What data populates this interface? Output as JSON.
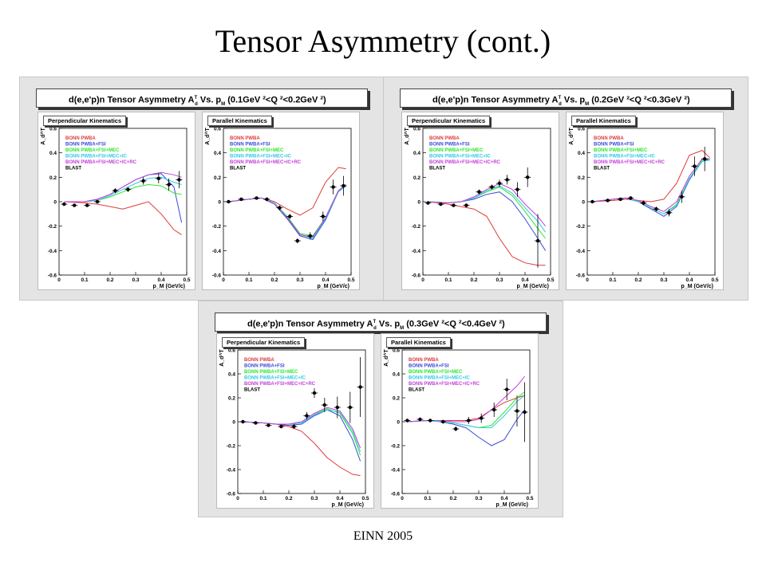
{
  "slide": {
    "title": "Tensor Asymmetry (cont.)",
    "footer": "EINN 2005"
  },
  "colors": {
    "pwba": "#e03a3a",
    "fsi": "#3a4ad8",
    "mec": "#2ee52e",
    "ic": "#2ecbe6",
    "rc": "#c23fd6",
    "blast": "#000000",
    "panel_bg": "#e4e4e4"
  },
  "legend": [
    "BONN PWBA",
    "BONN PWBA+FSI",
    "BONN PWBA+FSI+MEC",
    "BONN PWBA+FSI+MEC+IC",
    "BONN PWBA+FSI+MEC+IC+RC",
    "BLAST"
  ],
  "common": {
    "ylabel": "A_d^T",
    "xlabel": "p_M (GeV/c)",
    "ylim": [
      -0.6,
      0.6
    ],
    "xlim": [
      0,
      0.5
    ],
    "yticks": [
      "0.6",
      "0.4",
      "0.2",
      "0",
      "-0.2",
      "-0.4",
      "-0.6"
    ],
    "xticks": [
      "0",
      "0.1",
      "0.2",
      "0.3",
      "0.4",
      "0.5"
    ],
    "perp_label": "Perpendicular Kinematics",
    "par_label": "Parallel Kinematics"
  },
  "panels": [
    {
      "title_main": "d(e,e'p)n Tensor Asymmetry A",
      "title_sup": "T",
      "title_sub": "d",
      "title_vs": " Vs. p",
      "title_vs_sub": "M",
      "title_range": " (0.1GeV ²<Q ²<0.2GeV ²)"
    },
    {
      "title_main": "d(e,e'p)n Tensor Asymmetry A",
      "title_sup": "T",
      "title_sub": "d",
      "title_vs": " Vs. p",
      "title_vs_sub": "M",
      "title_range": " (0.2GeV ²<Q ²<0.3GeV ²)"
    },
    {
      "title_main": "d(e,e'p)n Tensor Asymmetry A",
      "title_sup": "T",
      "title_sub": "d",
      "title_vs": " Vs. p",
      "title_vs_sub": "M",
      "title_range": " (0.3GeV ²<Q ²<0.4GeV ²)"
    }
  ],
  "chart_data": [
    {
      "type": "line",
      "id": "p1-perp",
      "series": [
        {
          "name": "BONN PWBA",
          "x": [
            0.02,
            0.1,
            0.15,
            0.2,
            0.25,
            0.3,
            0.35,
            0.4,
            0.45,
            0.48
          ],
          "y": [
            0,
            -0.01,
            -0.02,
            -0.04,
            -0.06,
            -0.03,
            0.0,
            -0.1,
            -0.23,
            -0.27
          ]
        },
        {
          "name": "BONN PWBA+FSI",
          "x": [
            0.02,
            0.1,
            0.15,
            0.2,
            0.25,
            0.3,
            0.35,
            0.4,
            0.45,
            0.48
          ],
          "y": [
            0,
            0,
            0.02,
            0.06,
            0.12,
            0.18,
            0.22,
            0.23,
            0.12,
            -0.17
          ]
        },
        {
          "name": "BONN PWBA+FSI+MEC",
          "x": [
            0.02,
            0.1,
            0.15,
            0.2,
            0.25,
            0.3,
            0.35,
            0.4,
            0.45,
            0.48
          ],
          "y": [
            0,
            0,
            0.01,
            0.04,
            0.08,
            0.12,
            0.14,
            0.13,
            0.07,
            0.06
          ]
        },
        {
          "name": "BONN PWBA+FSI+MEC+IC",
          "x": [
            0.02,
            0.1,
            0.15,
            0.2,
            0.25,
            0.3,
            0.35,
            0.4,
            0.45,
            0.48
          ],
          "y": [
            0,
            0,
            0.01,
            0.05,
            0.1,
            0.15,
            0.19,
            0.2,
            0.16,
            0.14
          ]
        },
        {
          "name": "BONN PWBA+FSI+MEC+IC+RC",
          "x": [
            0.02,
            0.1,
            0.15,
            0.2,
            0.25,
            0.3,
            0.35,
            0.4,
            0.45,
            0.48
          ],
          "y": [
            0,
            0,
            0.02,
            0.06,
            0.12,
            0.18,
            0.22,
            0.24,
            0.22,
            0.2
          ]
        }
      ],
      "blast": {
        "x": [
          0.02,
          0.06,
          0.11,
          0.15,
          0.22,
          0.27,
          0.33,
          0.39,
          0.43,
          0.47
        ],
        "y": [
          -0.02,
          -0.03,
          -0.03,
          0.0,
          0.09,
          0.1,
          0.17,
          0.19,
          0.14,
          0.18
        ],
        "yerr": [
          0.01,
          0.01,
          0.01,
          0.015,
          0.02,
          0.02,
          0.03,
          0.04,
          0.05,
          0.07
        ]
      }
    },
    {
      "type": "line",
      "id": "p1-par",
      "series": [
        {
          "name": "BONN PWBA",
          "x": [
            0.02,
            0.1,
            0.15,
            0.2,
            0.25,
            0.3,
            0.35,
            0.4,
            0.45,
            0.48
          ],
          "y": [
            0,
            0.02,
            0.03,
            0.0,
            -0.06,
            -0.11,
            -0.05,
            0.16,
            0.28,
            0.27
          ]
        },
        {
          "name": "BONN PWBA+FSI",
          "x": [
            0.02,
            0.1,
            0.15,
            0.2,
            0.25,
            0.3,
            0.35,
            0.4,
            0.45,
            0.48
          ],
          "y": [
            0,
            0.02,
            0.03,
            -0.02,
            -0.14,
            -0.28,
            -0.31,
            -0.15,
            0.08,
            0.13
          ]
        },
        {
          "name": "BONN PWBA+FSI+MEC",
          "x": [
            0.02,
            0.1,
            0.15,
            0.2,
            0.25,
            0.3,
            0.35,
            0.4,
            0.45,
            0.48
          ],
          "y": [
            0,
            0.02,
            0.03,
            -0.01,
            -0.12,
            -0.26,
            -0.28,
            -0.13,
            0.09,
            0.14
          ]
        },
        {
          "name": "BONN PWBA+FSI+MEC+IC",
          "x": [
            0.02,
            0.1,
            0.15,
            0.2,
            0.25,
            0.3,
            0.35,
            0.4,
            0.45,
            0.48
          ],
          "y": [
            0,
            0.02,
            0.03,
            -0.01,
            -0.13,
            -0.27,
            -0.3,
            -0.14,
            0.08,
            0.13
          ]
        },
        {
          "name": "BONN PWBA+FSI+MEC+IC+RC",
          "x": [
            0.02,
            0.1,
            0.15,
            0.2,
            0.25,
            0.3,
            0.35,
            0.4,
            0.45,
            0.48
          ],
          "y": [
            0,
            0.02,
            0.03,
            -0.02,
            -0.13,
            -0.27,
            -0.29,
            -0.13,
            0.09,
            0.14
          ]
        }
      ],
      "blast": {
        "x": [
          0.02,
          0.07,
          0.13,
          0.17,
          0.22,
          0.26,
          0.29,
          0.34,
          0.39,
          0.43,
          0.47
        ],
        "y": [
          0,
          0.02,
          0.03,
          0.02,
          -0.05,
          -0.12,
          -0.32,
          -0.28,
          -0.12,
          0.12,
          0.13
        ],
        "yerr": [
          0.01,
          0.01,
          0.01,
          0.015,
          0.02,
          0.02,
          0.02,
          0.03,
          0.04,
          0.06,
          0.08
        ]
      }
    },
    {
      "type": "line",
      "id": "p2-perp",
      "series": [
        {
          "name": "BONN PWBA",
          "x": [
            0.02,
            0.1,
            0.15,
            0.2,
            0.25,
            0.3,
            0.35,
            0.4,
            0.45,
            0.48
          ],
          "y": [
            0,
            -0.02,
            -0.04,
            -0.06,
            -0.12,
            -0.3,
            -0.45,
            -0.5,
            -0.52,
            -0.52
          ]
        },
        {
          "name": "BONN PWBA+FSI",
          "x": [
            0.02,
            0.1,
            0.15,
            0.2,
            0.25,
            0.3,
            0.35,
            0.4,
            0.45,
            0.48
          ],
          "y": [
            0,
            -0.01,
            0.0,
            0.02,
            0.06,
            0.08,
            0.0,
            -0.14,
            -0.3,
            -0.4
          ]
        },
        {
          "name": "BONN PWBA+FSI+MEC",
          "x": [
            0.02,
            0.1,
            0.15,
            0.2,
            0.25,
            0.3,
            0.35,
            0.4,
            0.45,
            0.48
          ],
          "y": [
            0,
            -0.01,
            0.0,
            0.03,
            0.08,
            0.12,
            0.05,
            -0.08,
            -0.22,
            -0.3
          ]
        },
        {
          "name": "BONN PWBA+FSI+MEC+IC",
          "x": [
            0.02,
            0.1,
            0.15,
            0.2,
            0.25,
            0.3,
            0.35,
            0.4,
            0.45,
            0.48
          ],
          "y": [
            0,
            -0.01,
            0.0,
            0.03,
            0.09,
            0.13,
            0.07,
            -0.05,
            -0.16,
            -0.25
          ]
        },
        {
          "name": "BONN PWBA+FSI+MEC+IC+RC",
          "x": [
            0.02,
            0.1,
            0.15,
            0.2,
            0.25,
            0.3,
            0.35,
            0.4,
            0.45,
            0.48
          ],
          "y": [
            0,
            -0.01,
            0.0,
            0.04,
            0.1,
            0.15,
            0.1,
            -0.02,
            -0.12,
            -0.2
          ]
        }
      ],
      "blast": {
        "x": [
          0.02,
          0.07,
          0.12,
          0.17,
          0.22,
          0.27,
          0.3,
          0.33,
          0.37,
          0.41,
          0.45
        ],
        "y": [
          -0.01,
          -0.02,
          -0.03,
          -0.03,
          0.08,
          0.12,
          0.15,
          0.18,
          0.1,
          0.2,
          -0.32
        ],
        "yerr": [
          0.01,
          0.01,
          0.01,
          0.015,
          0.02,
          0.02,
          0.03,
          0.04,
          0.06,
          0.08,
          0.22
        ]
      }
    },
    {
      "type": "line",
      "id": "p2-par",
      "series": [
        {
          "name": "BONN PWBA",
          "x": [
            0.02,
            0.1,
            0.15,
            0.2,
            0.25,
            0.3,
            0.35,
            0.4,
            0.45,
            0.48
          ],
          "y": [
            0,
            0.01,
            0.02,
            0.01,
            0.0,
            0.02,
            0.15,
            0.38,
            0.42,
            0.36
          ]
        },
        {
          "name": "BONN PWBA+FSI",
          "x": [
            0.02,
            0.1,
            0.15,
            0.2,
            0.25,
            0.3,
            0.35,
            0.4,
            0.45,
            0.48
          ],
          "y": [
            0,
            0.02,
            0.03,
            0.0,
            -0.06,
            -0.12,
            -0.04,
            0.18,
            0.33,
            0.35
          ]
        },
        {
          "name": "BONN PWBA+FSI+MEC",
          "x": [
            0.02,
            0.1,
            0.15,
            0.2,
            0.25,
            0.3,
            0.35,
            0.4,
            0.45,
            0.48
          ],
          "y": [
            0,
            0.02,
            0.03,
            0.0,
            -0.05,
            -0.1,
            -0.02,
            0.19,
            0.34,
            0.35
          ]
        },
        {
          "name": "BONN PWBA+FSI+MEC+IC",
          "x": [
            0.02,
            0.1,
            0.15,
            0.2,
            0.25,
            0.3,
            0.35,
            0.4,
            0.45,
            0.48
          ],
          "y": [
            0,
            0.02,
            0.03,
            0.0,
            -0.05,
            -0.1,
            -0.03,
            0.19,
            0.33,
            0.34
          ]
        },
        {
          "name": "BONN PWBA+FSI+MEC+IC+RC",
          "x": [
            0.02,
            0.1,
            0.15,
            0.2,
            0.25,
            0.3,
            0.35,
            0.4,
            0.45,
            0.48
          ],
          "y": [
            0,
            0.02,
            0.03,
            0.01,
            -0.04,
            -0.08,
            0.0,
            0.21,
            0.35,
            0.35
          ]
        }
      ],
      "blast": {
        "x": [
          0.02,
          0.08,
          0.13,
          0.17,
          0.22,
          0.27,
          0.32,
          0.37,
          0.42,
          0.46
        ],
        "y": [
          0,
          0.01,
          0.02,
          0.03,
          -0.01,
          -0.06,
          -0.09,
          0.04,
          0.29,
          0.35
        ],
        "yerr": [
          0.01,
          0.01,
          0.01,
          0.015,
          0.02,
          0.02,
          0.03,
          0.05,
          0.08,
          0.1
        ]
      }
    },
    {
      "type": "line",
      "id": "p3-perp",
      "series": [
        {
          "name": "BONN PWBA",
          "x": [
            0.02,
            0.1,
            0.15,
            0.2,
            0.25,
            0.3,
            0.35,
            0.4,
            0.45,
            0.48
          ],
          "y": [
            0,
            -0.01,
            -0.02,
            -0.04,
            -0.08,
            -0.18,
            -0.3,
            -0.38,
            -0.44,
            -0.45
          ]
        },
        {
          "name": "BONN PWBA+FSI",
          "x": [
            0.02,
            0.1,
            0.15,
            0.2,
            0.25,
            0.3,
            0.35,
            0.4,
            0.45,
            0.48
          ],
          "y": [
            0,
            -0.01,
            -0.02,
            -0.03,
            -0.02,
            0.05,
            0.1,
            0.05,
            -0.15,
            -0.33
          ]
        },
        {
          "name": "BONN PWBA+FSI+MEC",
          "x": [
            0.02,
            0.1,
            0.15,
            0.2,
            0.25,
            0.3,
            0.35,
            0.4,
            0.45,
            0.48
          ],
          "y": [
            0,
            -0.01,
            -0.02,
            -0.02,
            -0.01,
            0.06,
            0.11,
            0.07,
            -0.1,
            -0.28
          ]
        },
        {
          "name": "BONN PWBA+FSI+MEC+IC",
          "x": [
            0.02,
            0.1,
            0.15,
            0.2,
            0.25,
            0.3,
            0.35,
            0.4,
            0.45,
            0.48
          ],
          "y": [
            0,
            -0.01,
            -0.02,
            -0.02,
            -0.01,
            0.06,
            0.1,
            0.08,
            -0.08,
            -0.25
          ]
        },
        {
          "name": "BONN PWBA+FSI+MEC+IC+RC",
          "x": [
            0.02,
            0.1,
            0.15,
            0.2,
            0.25,
            0.3,
            0.35,
            0.4,
            0.45,
            0.48
          ],
          "y": [
            0,
            -0.01,
            -0.02,
            -0.02,
            0.0,
            0.07,
            0.12,
            0.09,
            -0.06,
            -0.22
          ]
        }
      ],
      "blast": {
        "x": [
          0.02,
          0.07,
          0.12,
          0.17,
          0.22,
          0.27,
          0.3,
          0.34,
          0.39,
          0.44,
          0.48
        ],
        "y": [
          0,
          -0.01,
          -0.03,
          -0.04,
          -0.04,
          0.05,
          0.24,
          0.14,
          0.12,
          0.12,
          0.29
        ],
        "yerr": [
          0.01,
          0.01,
          0.01,
          0.015,
          0.02,
          0.03,
          0.04,
          0.06,
          0.09,
          0.13,
          0.25
        ]
      }
    },
    {
      "type": "line",
      "id": "p3-par",
      "series": [
        {
          "name": "BONN PWBA",
          "x": [
            0.02,
            0.1,
            0.15,
            0.2,
            0.25,
            0.3,
            0.35,
            0.4,
            0.45,
            0.48
          ],
          "y": [
            0,
            0.01,
            0.01,
            0.01,
            0.01,
            0.03,
            0.1,
            0.16,
            0.2,
            0.22
          ]
        },
        {
          "name": "BONN PWBA+FSI",
          "x": [
            0.02,
            0.1,
            0.15,
            0.2,
            0.25,
            0.3,
            0.35,
            0.4,
            0.45,
            0.48
          ],
          "y": [
            0,
            0.01,
            0.0,
            -0.02,
            -0.05,
            -0.13,
            -0.2,
            -0.15,
            0.02,
            0.1
          ]
        },
        {
          "name": "BONN PWBA+FSI+MEC",
          "x": [
            0.02,
            0.1,
            0.15,
            0.2,
            0.25,
            0.3,
            0.35,
            0.4,
            0.45,
            0.48
          ],
          "y": [
            0,
            0.01,
            0.0,
            -0.01,
            -0.03,
            -0.05,
            -0.03,
            0.08,
            0.2,
            0.25
          ]
        },
        {
          "name": "BONN PWBA+FSI+MEC+IC",
          "x": [
            0.02,
            0.1,
            0.15,
            0.2,
            0.25,
            0.3,
            0.35,
            0.4,
            0.45,
            0.48
          ],
          "y": [
            0,
            0.01,
            0.0,
            -0.01,
            -0.03,
            -0.05,
            -0.05,
            0.05,
            0.17,
            0.22
          ]
        },
        {
          "name": "BONN PWBA+FSI+MEC+IC+RC",
          "x": [
            0.02,
            0.1,
            0.15,
            0.2,
            0.25,
            0.3,
            0.35,
            0.4,
            0.45,
            0.48
          ],
          "y": [
            0,
            0.01,
            0.01,
            0.0,
            0.0,
            0.02,
            0.1,
            0.2,
            0.3,
            0.38
          ]
        }
      ],
      "blast": {
        "x": [
          0.02,
          0.07,
          0.11,
          0.16,
          0.21,
          0.26,
          0.31,
          0.36,
          0.41,
          0.45,
          0.48
        ],
        "y": [
          0.01,
          0.02,
          0.01,
          0.0,
          -0.06,
          0.01,
          0.03,
          0.1,
          0.27,
          0.09,
          0.08
        ],
        "yerr": [
          0.01,
          0.01,
          0.01,
          0.015,
          0.02,
          0.03,
          0.04,
          0.06,
          0.09,
          0.13,
          0.25
        ]
      }
    }
  ]
}
